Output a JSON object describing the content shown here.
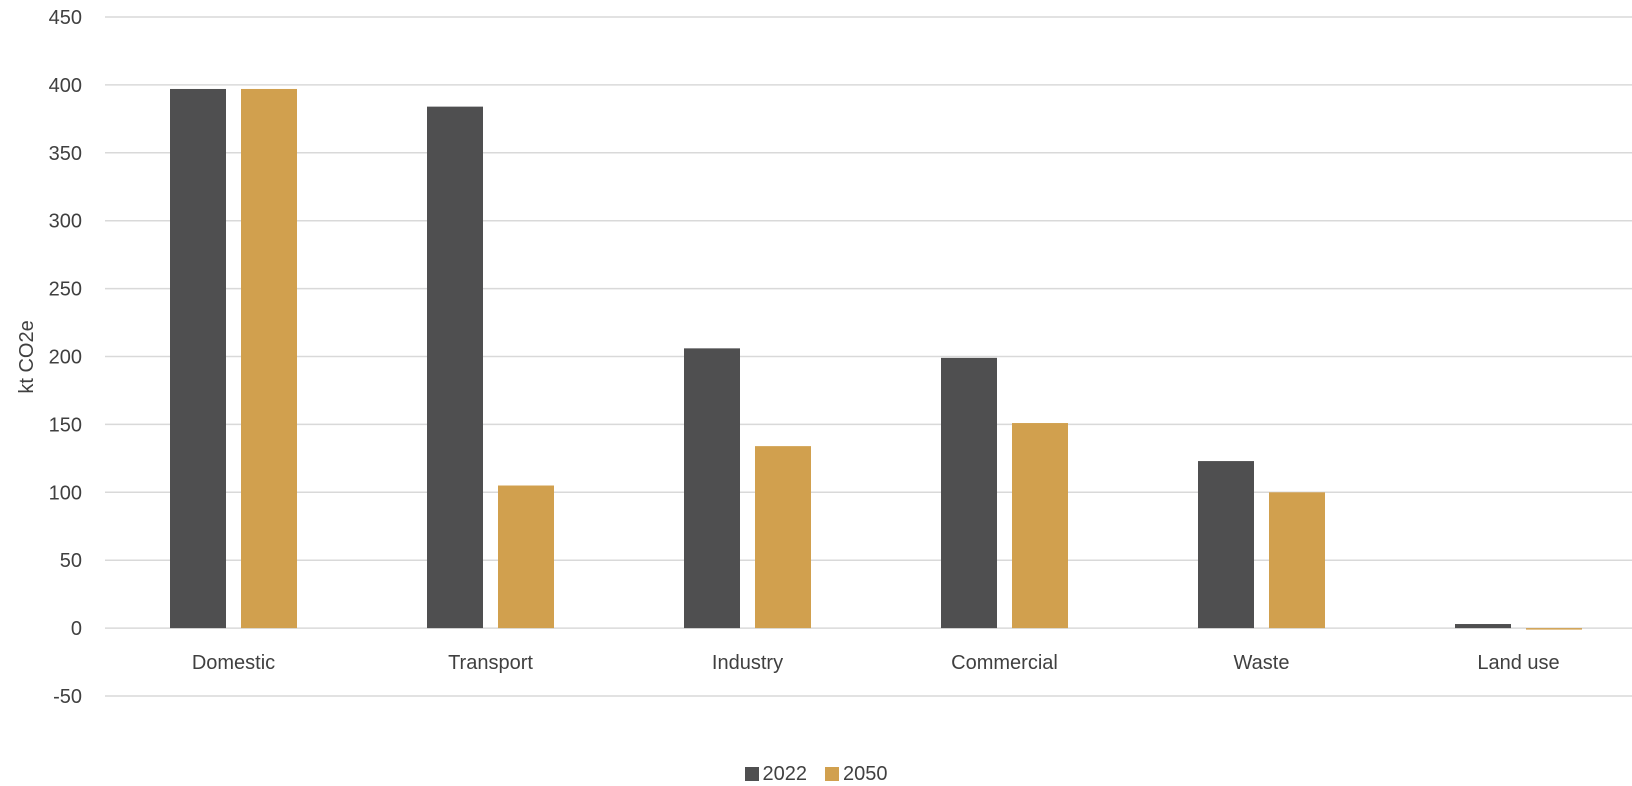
{
  "chart_data": {
    "type": "bar",
    "title": "",
    "xlabel": "",
    "ylabel": "kt CO2e",
    "categories": [
      "Domestic",
      "Transport",
      "Industry",
      "Commercial",
      "Waste",
      "Land use"
    ],
    "series": [
      {
        "name": "2022",
        "color": "#4f4f50",
        "values": [
          397,
          384,
          206,
          199,
          123,
          3
        ]
      },
      {
        "name": "2050",
        "color": "#d1a04e",
        "values": [
          397,
          105,
          134,
          151,
          100,
          -1
        ]
      }
    ],
    "ylim": [
      -50,
      450
    ],
    "yticks": [
      -50,
      0,
      50,
      100,
      150,
      200,
      250,
      300,
      350,
      400,
      450
    ],
    "ytick_labels": [
      "-50",
      "0",
      "50",
      "100",
      "150",
      "200",
      "250",
      "300",
      "350",
      "400",
      "450"
    ],
    "grid": true,
    "gridline_color": "#d9d9d9",
    "legend_position": "bottom-center"
  }
}
